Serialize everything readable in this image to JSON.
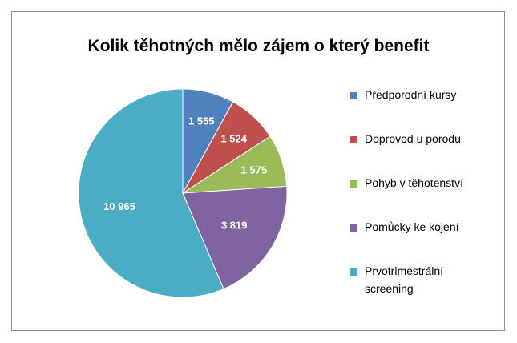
{
  "chart_data": {
    "type": "pie",
    "title": "Kolik těhotných mělo zájem o který benefit",
    "categories": [
      "Předporodní kursy",
      "Doprovod u porodu",
      "Pohyb v těhotenství",
      "Pomůcky ke kojení",
      "Prvotrimestrální screening"
    ],
    "values": [
      1555,
      1524,
      1575,
      3819,
      10965
    ],
    "data_labels": [
      "1 555",
      "1 524",
      "1 575",
      "3 819",
      "10 965"
    ],
    "colors": [
      "#4f81bd",
      "#c0504d",
      "#9bbb59",
      "#8064a2",
      "#4bacc6"
    ],
    "legend_position": "right",
    "start_angle": "top",
    "direction": "clockwise"
  }
}
